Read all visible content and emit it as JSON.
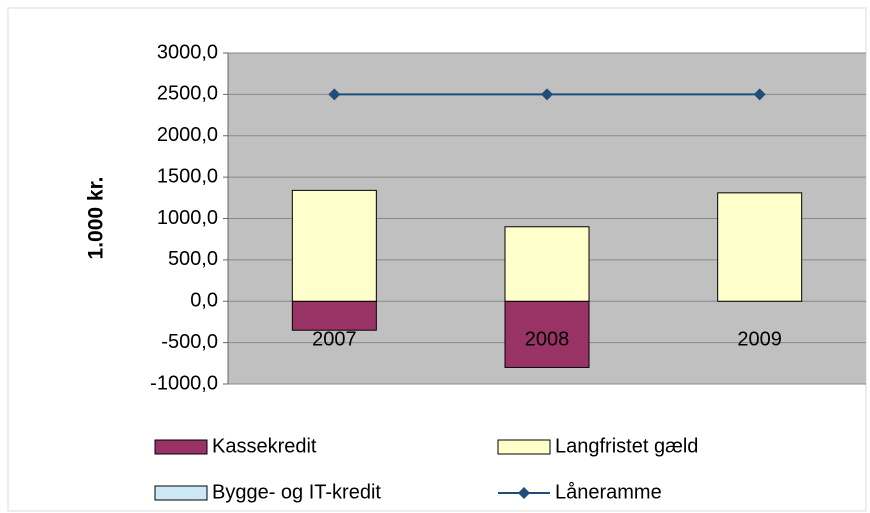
{
  "chart_data": {
    "type": "stacked-bar-line",
    "y_label": "1.000 kr.",
    "categories": [
      "2007",
      "2008",
      "2009"
    ],
    "series": [
      {
        "name": "Kassekredit",
        "color": "#993366",
        "values": [
          -350,
          -800,
          0
        ]
      },
      {
        "name": "Langfristet gæld",
        "color": "#ffffcc",
        "values": [
          1340,
          900,
          1310
        ]
      },
      {
        "name": "Bygge- og IT-kredit",
        "color": "#cce8f4",
        "values": [
          0,
          0,
          0
        ]
      },
      {
        "name": "Låneramme",
        "color": "#1f4e79",
        "type": "line",
        "values": [
          2500,
          2500,
          2500
        ]
      }
    ],
    "ylim": [
      -1000,
      3000
    ],
    "yticks": [
      {
        "value": -1000,
        "label": "-1000,0"
      },
      {
        "value": -500,
        "label": "-500,0"
      },
      {
        "value": 0,
        "label": "0,0"
      },
      {
        "value": 500,
        "label": "500,0"
      },
      {
        "value": 1000,
        "label": "1000,0"
      },
      {
        "value": 1500,
        "label": "1500,0"
      },
      {
        "value": 2000,
        "label": "2000,0"
      },
      {
        "value": 2500,
        "label": "2500,0"
      },
      {
        "value": 3000,
        "label": "3000,0"
      }
    ],
    "grid": true,
    "legend": "bottom"
  }
}
